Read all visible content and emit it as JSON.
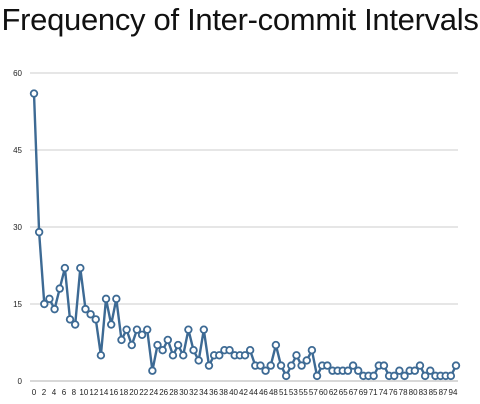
{
  "chart_data": {
    "type": "line",
    "title": "Frequency of Inter-commit Intervals",
    "xlabel": "",
    "ylabel": "",
    "ylim": [
      0,
      60
    ],
    "yticks": [
      0,
      15,
      30,
      45,
      60
    ],
    "grid": true,
    "legend": "none",
    "x_tick_labels": [
      "0",
      "2",
      "4",
      "6",
      "8",
      "10",
      "12",
      "14",
      "16",
      "18",
      "20",
      "22",
      "24",
      "26",
      "28",
      "30",
      "32",
      "34",
      "36",
      "38",
      "40",
      "42",
      "44",
      "46",
      "48",
      "51",
      "53",
      "55",
      "57",
      "60",
      "62",
      "65",
      "67",
      "69",
      "71",
      "74",
      "76",
      "78",
      "80",
      "83",
      "85",
      "87",
      "94"
    ],
    "series": [
      {
        "values": [
          56,
          29,
          15,
          16,
          14,
          18,
          22,
          12,
          11,
          22,
          14,
          13,
          12,
          5,
          16,
          11,
          16,
          8,
          10,
          7,
          10,
          9,
          10,
          2,
          7,
          6,
          8,
          5,
          7,
          5,
          10,
          6,
          4,
          10,
          3,
          5,
          5,
          6,
          6,
          5,
          5,
          5,
          6,
          3,
          3,
          2,
          3,
          7,
          3,
          1,
          3,
          5,
          3,
          4,
          6,
          1,
          3,
          3,
          2,
          2,
          2,
          2,
          3,
          2,
          1,
          1,
          1,
          3,
          3,
          1,
          1,
          2,
          1,
          2,
          2,
          3,
          1,
          2,
          1,
          1,
          1,
          1,
          3
        ],
        "color": "#3d6a94"
      }
    ]
  },
  "colors": {
    "line": "#3d6a94",
    "grid": "#cccccc",
    "marker_fill": "#ffffff"
  }
}
